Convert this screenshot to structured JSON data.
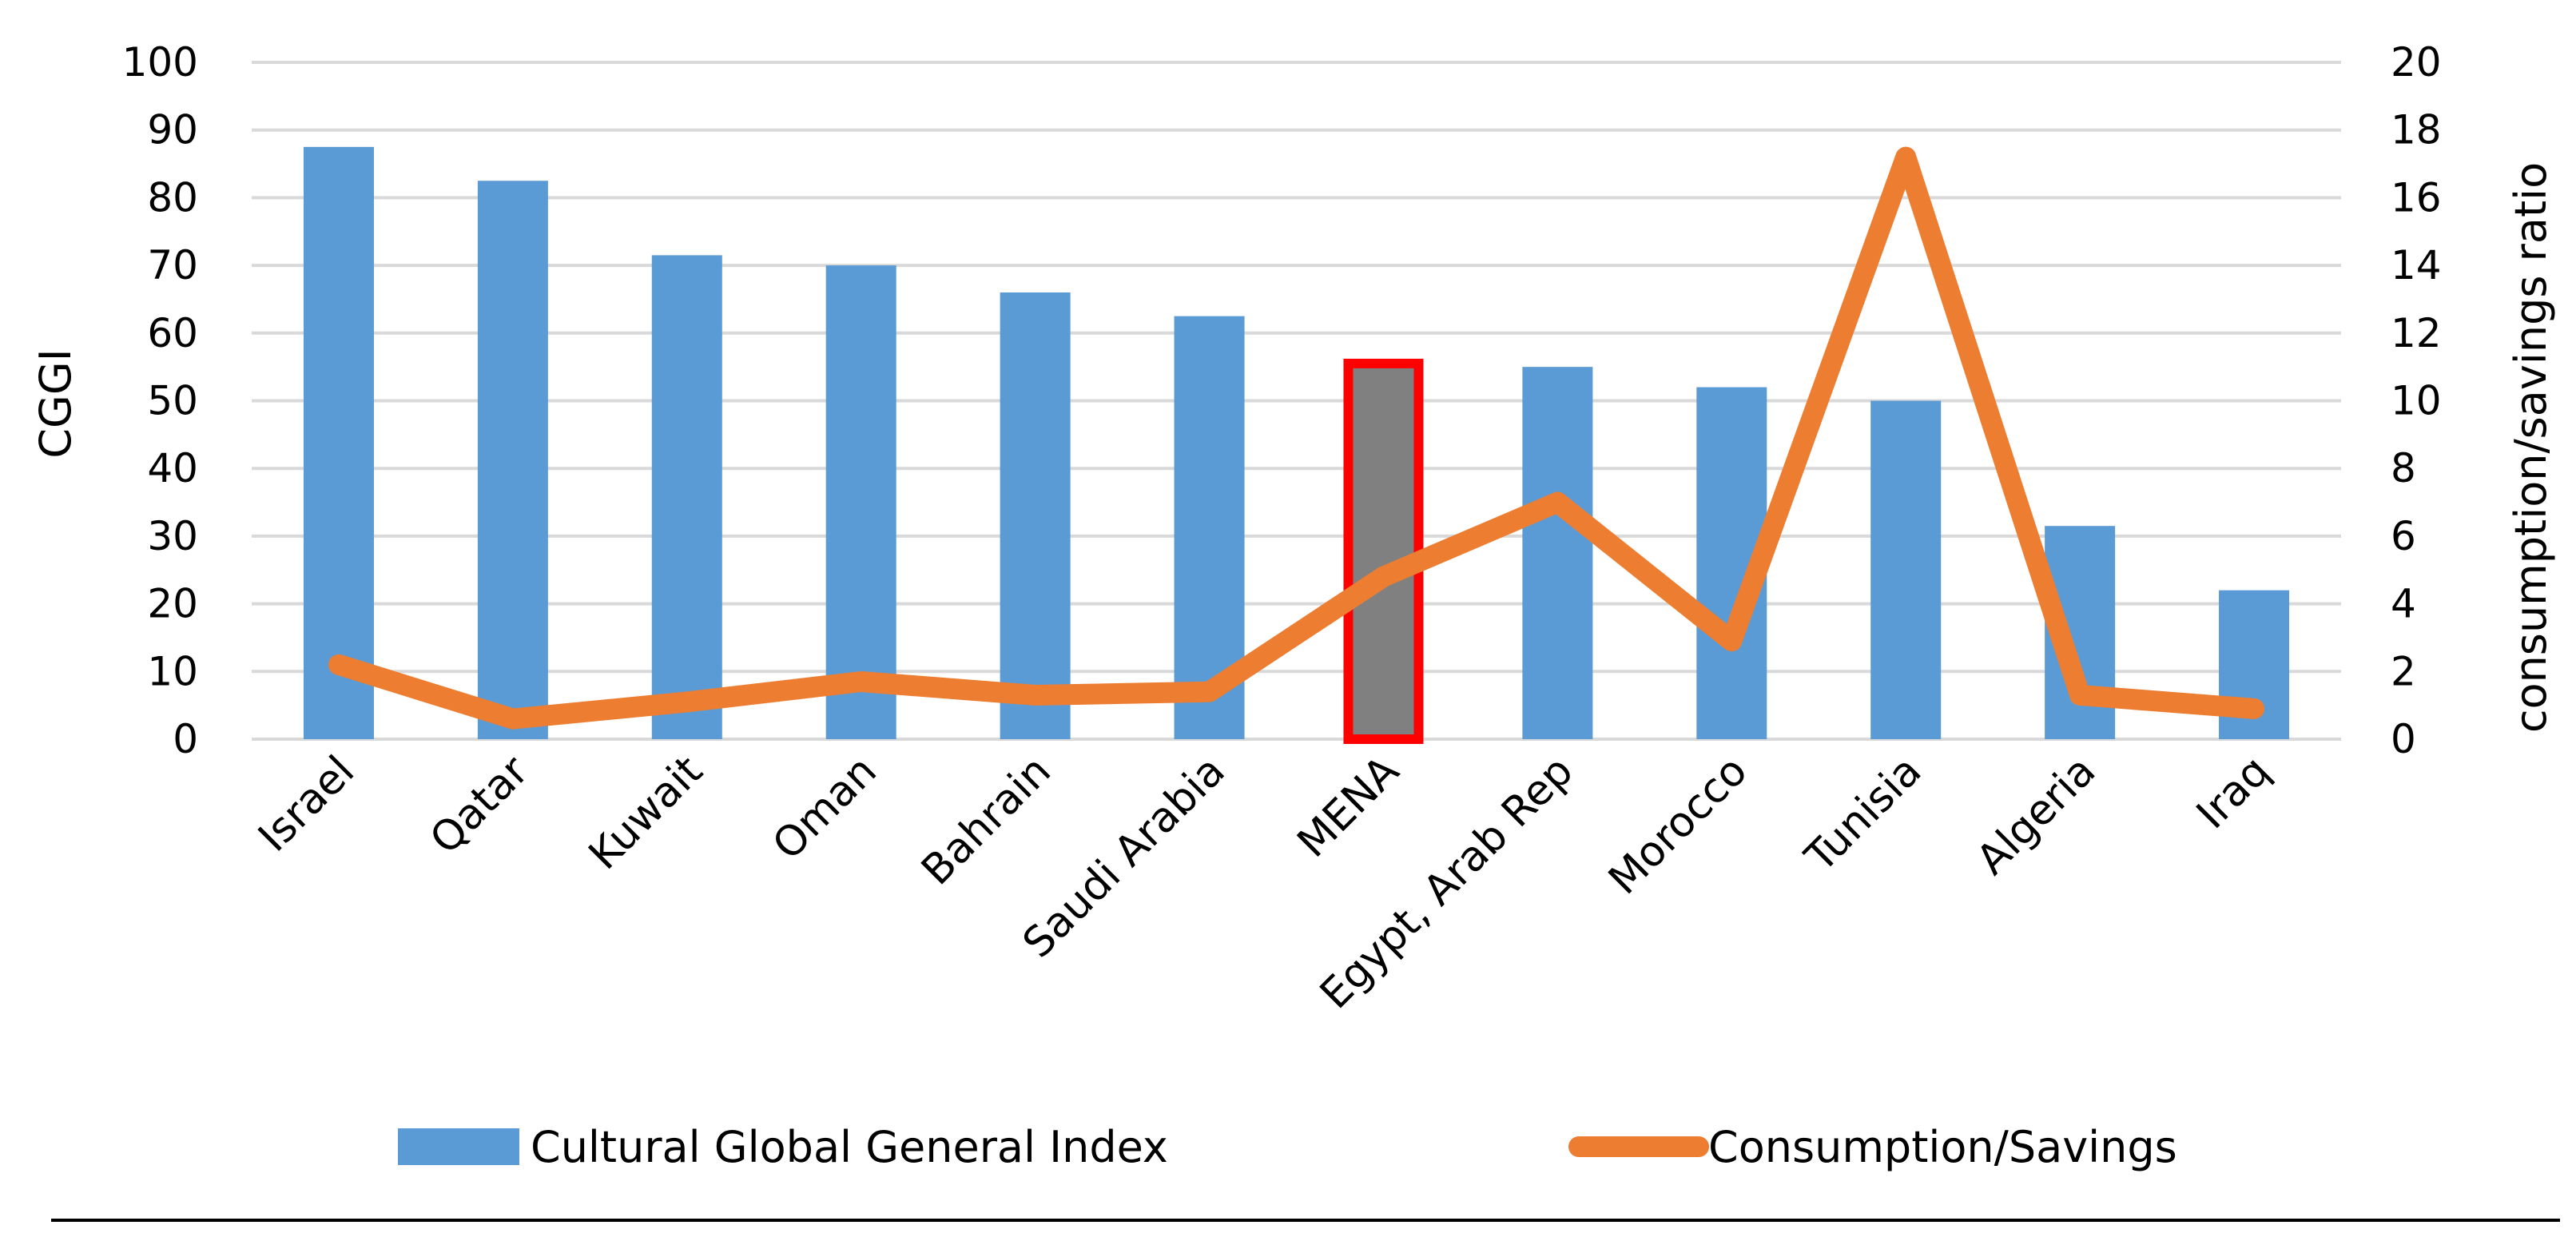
{
  "chart_data": {
    "type": "bar",
    "categories": [
      "Israel",
      "Qatar",
      "Kuwait",
      "Oman",
      "Bahrain",
      "Saudi Arabia",
      "MENA",
      "Egypt, Arab Rep",
      "Morocco",
      "Tunisia",
      "Algeria",
      "Iraq"
    ],
    "series": [
      {
        "name": "Cultural Global General Index",
        "type": "bar",
        "axis": "left",
        "color": "#5b9bd5",
        "values": [
          87.5,
          82.5,
          71.5,
          70,
          66,
          62.5,
          55.5,
          55,
          52,
          50,
          31.5,
          22
        ]
      },
      {
        "name": "Consumption/Savings",
        "type": "line",
        "axis": "right",
        "color": "#ed7d31",
        "values": [
          2.2,
          0.6,
          1.1,
          1.7,
          1.3,
          1.4,
          4.8,
          7.0,
          2.9,
          17.2,
          1.3,
          0.9
        ]
      }
    ],
    "highlight": {
      "category": "MENA",
      "fill": "#808080",
      "outline": "#ff0000"
    },
    "ylabel": "CGGI",
    "ylabel_right": "consumption/savings ratio",
    "ylim": [
      0,
      100
    ],
    "ylim_right": [
      0,
      20
    ],
    "yticks": [
      "0",
      "10",
      "20",
      "30",
      "40",
      "50",
      "60",
      "70",
      "80",
      "90",
      "100"
    ],
    "yticks_right": [
      "0",
      "2",
      "4",
      "6",
      "8",
      "10",
      "12",
      "14",
      "16",
      "18",
      "20"
    ],
    "grid": true,
    "legend_position": "bottom"
  }
}
